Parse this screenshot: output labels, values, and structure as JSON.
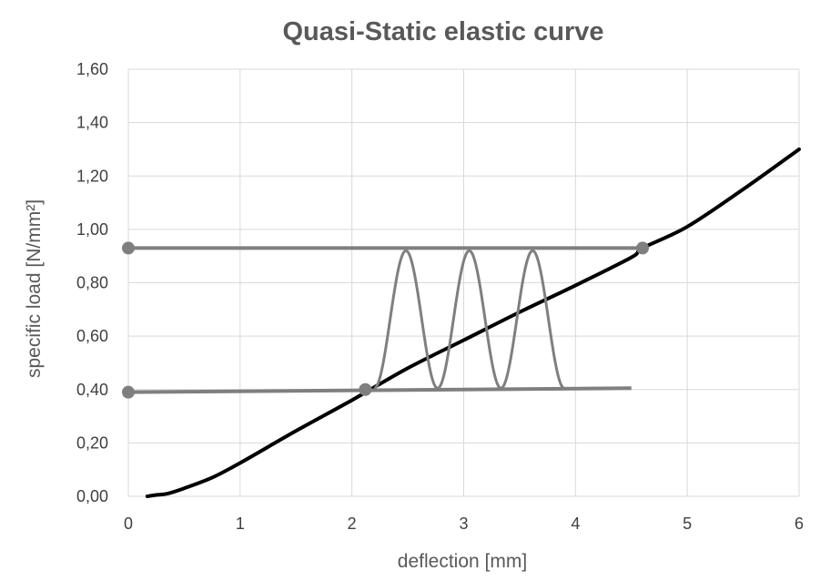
{
  "chart_data": {
    "type": "line",
    "title": "Quasi-Static elastic curve",
    "xlabel": "deflection [mm]",
    "ylabel": "specific load [N/mm²]",
    "xlim": [
      0,
      6
    ],
    "ylim": [
      0,
      1.6
    ],
    "grid": true,
    "legend": "none",
    "x_ticks": [
      "0",
      "1",
      "2",
      "3",
      "4",
      "5",
      "6"
    ],
    "y_ticks": [
      "0,00",
      "0,20",
      "0,40",
      "0,60",
      "0,80",
      "1,00",
      "1,20",
      "1,40",
      "1,60"
    ],
    "colors": {
      "curve": "#000000",
      "overlay": "#7f7f7f",
      "grid": "#d9d9d9",
      "text": "#595959"
    },
    "series": [
      {
        "kind": "elastic-curve",
        "x": [
          0.17,
          0.25,
          0.35,
          0.5,
          0.75,
          1.0,
          1.5,
          2.0,
          2.5,
          3.0,
          3.5,
          4.0,
          4.5,
          4.6,
          5.0,
          5.5,
          6.0
        ],
        "y": [
          0.0,
          0.005,
          0.01,
          0.03,
          0.07,
          0.125,
          0.245,
          0.36,
          0.48,
          0.585,
          0.69,
          0.79,
          0.895,
          0.93,
          1.01,
          1.15,
          1.3
        ]
      },
      {
        "kind": "upper-load-line",
        "x": [
          0.0,
          4.6
        ],
        "y": [
          0.93,
          0.93
        ]
      },
      {
        "kind": "lower-load-line",
        "x": [
          0.0,
          4.5
        ],
        "y": [
          0.39,
          0.405
        ]
      },
      {
        "kind": "oscillation",
        "x_start": 2.2,
        "x_end": 3.9,
        "cycles": 3,
        "y_min": 0.405,
        "y_max": 0.92
      }
    ],
    "markers": [
      {
        "x": 0.0,
        "y": 0.93
      },
      {
        "x": 4.6,
        "y": 0.93
      },
      {
        "x": 0.0,
        "y": 0.39
      },
      {
        "x": 2.12,
        "y": 0.4
      }
    ]
  }
}
